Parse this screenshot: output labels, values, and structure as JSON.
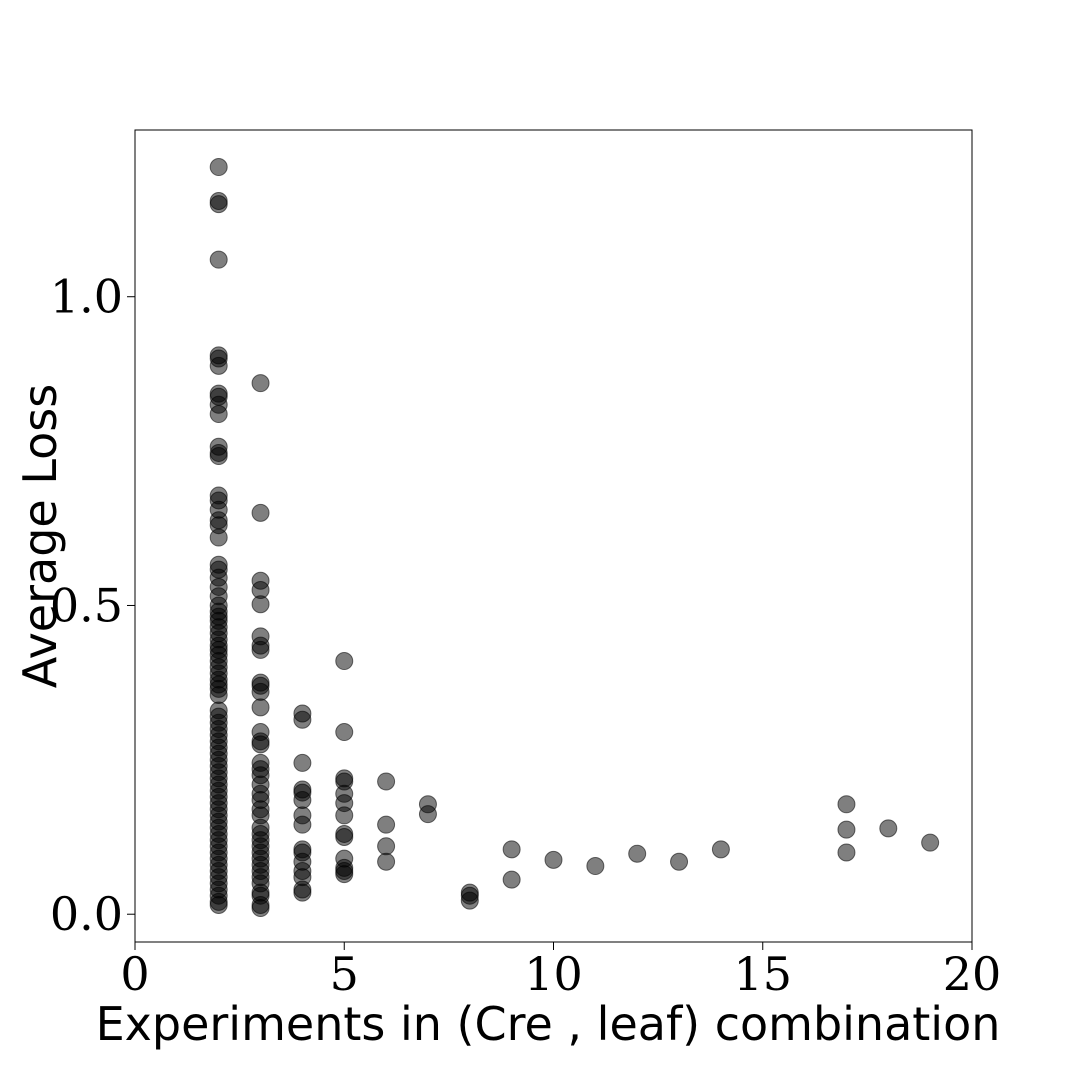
{
  "chart_data": {
    "type": "scatter",
    "title": "",
    "xlabel": "Experiments in (Cre , leaf) combination",
    "ylabel": "Average Loss",
    "xlim": [
      0,
      20
    ],
    "ylim": [
      -0.045,
      1.27
    ],
    "xticks": [
      0,
      5,
      10,
      15,
      20
    ],
    "xtick_labels": [
      "0",
      "5",
      "10",
      "15",
      "20"
    ],
    "yticks": [
      0.0,
      0.5,
      1.0
    ],
    "ytick_labels": [
      "0.0",
      "0.5",
      "1.0"
    ],
    "grid": false,
    "legend": "none",
    "marker_color": "#000000",
    "marker_opacity": 0.5,
    "points": [
      [
        2,
        1.21
      ],
      [
        2,
        1.155
      ],
      [
        2,
        1.15
      ],
      [
        2,
        1.06
      ],
      [
        2,
        0.905
      ],
      [
        2,
        0.9
      ],
      [
        2,
        0.888
      ],
      [
        2,
        0.843
      ],
      [
        2,
        0.838
      ],
      [
        2,
        0.825
      ],
      [
        2,
        0.81
      ],
      [
        2,
        0.757
      ],
      [
        2,
        0.747
      ],
      [
        2,
        0.742
      ],
      [
        2,
        0.678
      ],
      [
        2,
        0.67
      ],
      [
        2,
        0.655
      ],
      [
        2,
        0.638
      ],
      [
        2,
        0.63
      ],
      [
        2,
        0.61
      ],
      [
        2,
        0.566
      ],
      [
        2,
        0.558
      ],
      [
        2,
        0.545
      ],
      [
        2,
        0.53
      ],
      [
        2,
        0.515
      ],
      [
        2,
        0.5
      ],
      [
        2,
        0.49
      ],
      [
        2,
        0.482
      ],
      [
        2,
        0.475
      ],
      [
        2,
        0.465
      ],
      [
        2,
        0.455
      ],
      [
        2,
        0.445
      ],
      [
        2,
        0.435
      ],
      [
        2,
        0.428
      ],
      [
        2,
        0.42
      ],
      [
        2,
        0.41
      ],
      [
        2,
        0.4
      ],
      [
        2,
        0.39
      ],
      [
        2,
        0.38
      ],
      [
        2,
        0.372
      ],
      [
        2,
        0.365
      ],
      [
        2,
        0.355
      ],
      [
        2,
        0.33
      ],
      [
        2,
        0.32
      ],
      [
        2,
        0.31
      ],
      [
        2,
        0.3
      ],
      [
        2,
        0.29
      ],
      [
        2,
        0.28
      ],
      [
        2,
        0.27
      ],
      [
        2,
        0.26
      ],
      [
        2,
        0.25
      ],
      [
        2,
        0.24
      ],
      [
        2,
        0.23
      ],
      [
        2,
        0.22
      ],
      [
        2,
        0.21
      ],
      [
        2,
        0.2
      ],
      [
        2,
        0.19
      ],
      [
        2,
        0.18
      ],
      [
        2,
        0.17
      ],
      [
        2,
        0.16
      ],
      [
        2,
        0.15
      ],
      [
        2,
        0.14
      ],
      [
        2,
        0.13
      ],
      [
        2,
        0.12
      ],
      [
        2,
        0.11
      ],
      [
        2,
        0.1
      ],
      [
        2,
        0.09
      ],
      [
        2,
        0.08
      ],
      [
        2,
        0.07
      ],
      [
        2,
        0.06
      ],
      [
        2,
        0.05
      ],
      [
        2,
        0.04
      ],
      [
        2,
        0.03
      ],
      [
        2,
        0.02
      ],
      [
        2,
        0.015
      ],
      [
        3,
        0.86
      ],
      [
        3,
        0.65
      ],
      [
        3,
        0.54
      ],
      [
        3,
        0.525
      ],
      [
        3,
        0.502
      ],
      [
        3,
        0.45
      ],
      [
        3,
        0.435
      ],
      [
        3,
        0.428
      ],
      [
        3,
        0.375
      ],
      [
        3,
        0.37
      ],
      [
        3,
        0.36
      ],
      [
        3,
        0.335
      ],
      [
        3,
        0.295
      ],
      [
        3,
        0.28
      ],
      [
        3,
        0.275
      ],
      [
        3,
        0.245
      ],
      [
        3,
        0.235
      ],
      [
        3,
        0.225
      ],
      [
        3,
        0.21
      ],
      [
        3,
        0.195
      ],
      [
        3,
        0.185
      ],
      [
        3,
        0.17
      ],
      [
        3,
        0.16
      ],
      [
        3,
        0.14
      ],
      [
        3,
        0.13
      ],
      [
        3,
        0.12
      ],
      [
        3,
        0.11
      ],
      [
        3,
        0.1
      ],
      [
        3,
        0.09
      ],
      [
        3,
        0.08
      ],
      [
        3,
        0.07
      ],
      [
        3,
        0.06
      ],
      [
        3,
        0.05
      ],
      [
        3,
        0.035
      ],
      [
        3,
        0.03
      ],
      [
        3,
        0.015
      ],
      [
        3,
        0.01
      ],
      [
        4,
        0.325
      ],
      [
        4,
        0.315
      ],
      [
        4,
        0.245
      ],
      [
        4,
        0.202
      ],
      [
        4,
        0.197
      ],
      [
        4,
        0.185
      ],
      [
        4,
        0.16
      ],
      [
        4,
        0.145
      ],
      [
        4,
        0.105
      ],
      [
        4,
        0.1
      ],
      [
        4,
        0.085
      ],
      [
        4,
        0.07
      ],
      [
        4,
        0.06
      ],
      [
        4,
        0.04
      ],
      [
        4,
        0.035
      ],
      [
        5,
        0.41
      ],
      [
        5,
        0.295
      ],
      [
        5,
        0.22
      ],
      [
        5,
        0.215
      ],
      [
        5,
        0.195
      ],
      [
        5,
        0.18
      ],
      [
        5,
        0.16
      ],
      [
        5,
        0.13
      ],
      [
        5,
        0.125
      ],
      [
        5,
        0.09
      ],
      [
        5,
        0.075
      ],
      [
        5,
        0.07
      ],
      [
        5,
        0.065
      ],
      [
        6,
        0.215
      ],
      [
        6,
        0.145
      ],
      [
        6,
        0.11
      ],
      [
        6,
        0.085
      ],
      [
        7,
        0.178
      ],
      [
        7,
        0.162
      ],
      [
        8,
        0.035
      ],
      [
        8,
        0.03
      ],
      [
        8,
        0.022
      ],
      [
        9,
        0.105
      ],
      [
        9,
        0.056
      ],
      [
        10,
        0.088
      ],
      [
        11,
        0.078
      ],
      [
        12,
        0.098
      ],
      [
        13,
        0.085
      ],
      [
        14,
        0.105
      ],
      [
        17,
        0.178
      ],
      [
        17,
        0.137
      ],
      [
        17,
        0.1
      ],
      [
        18,
        0.139
      ],
      [
        19,
        0.116
      ]
    ]
  }
}
